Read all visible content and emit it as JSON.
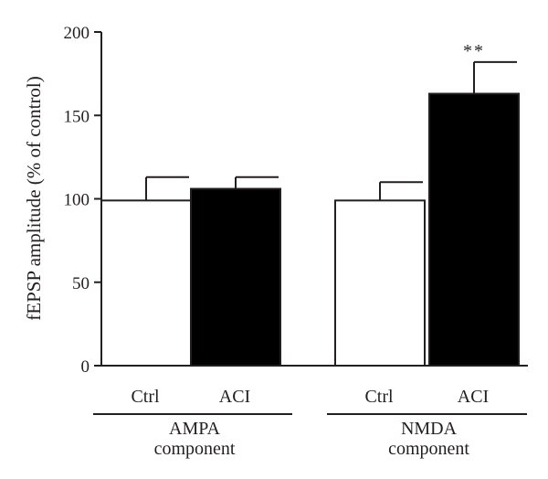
{
  "chart_data": {
    "type": "bar",
    "ylabel": "fEPSP amplitude (% of control)",
    "ylim": [
      0,
      200
    ],
    "yticks": [
      0,
      50,
      100,
      150,
      200
    ],
    "groups": [
      {
        "label_line1": "AMPA",
        "label_line2": "component",
        "bars": [
          {
            "category": "Ctrl",
            "value": 99,
            "error": 14,
            "fill": "white",
            "annotation": ""
          },
          {
            "category": "ACI",
            "value": 106,
            "error": 7,
            "fill": "black",
            "annotation": ""
          }
        ]
      },
      {
        "label_line1": "NMDA",
        "label_line2": "component",
        "bars": [
          {
            "category": "Ctrl",
            "value": 99,
            "error": 11,
            "fill": "white",
            "annotation": ""
          },
          {
            "category": "ACI",
            "value": 163,
            "error": 19,
            "fill": "black",
            "annotation": "**"
          }
        ]
      }
    ]
  },
  "colors": {
    "axis": "#231f20",
    "bar_black": "#000000",
    "bar_white": "#ffffff"
  }
}
